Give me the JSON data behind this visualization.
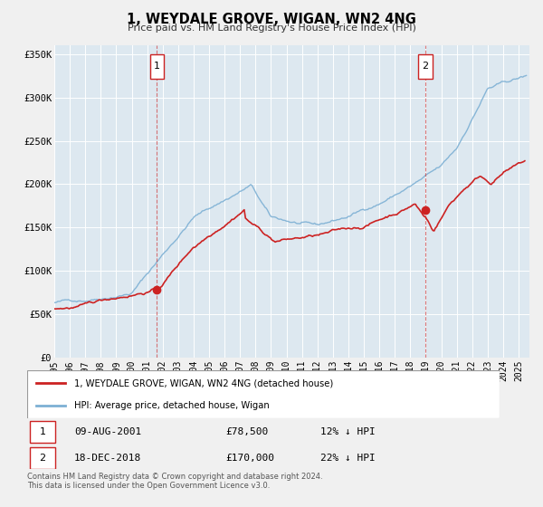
{
  "title": "1, WEYDALE GROVE, WIGAN, WN2 4NG",
  "subtitle": "Price paid vs. HM Land Registry's House Price Index (HPI)",
  "fig_bg_color": "#f0f0f0",
  "plot_bg_color": "#dde8f0",
  "grid_color": "#ffffff",
  "hpi_color": "#7db0d4",
  "price_color": "#cc2222",
  "ylim": [
    0,
    360000
  ],
  "xlim_start": 1995.0,
  "xlim_end": 2025.7,
  "ytick_labels": [
    "£0",
    "£50K",
    "£100K",
    "£150K",
    "£200K",
    "£250K",
    "£300K",
    "£350K"
  ],
  "ytick_values": [
    0,
    50000,
    100000,
    150000,
    200000,
    250000,
    300000,
    350000
  ],
  "xtick_years": [
    1995,
    1996,
    1997,
    1998,
    1999,
    2000,
    2001,
    2002,
    2003,
    2004,
    2005,
    2006,
    2007,
    2008,
    2009,
    2010,
    2011,
    2012,
    2013,
    2014,
    2015,
    2016,
    2017,
    2018,
    2019,
    2020,
    2021,
    2022,
    2023,
    2024,
    2025
  ],
  "sale1_x": 2001.62,
  "sale1_y": 78500,
  "sale2_x": 2018.97,
  "sale2_y": 170000,
  "legend1": "1, WEYDALE GROVE, WIGAN, WN2 4NG (detached house)",
  "legend2": "HPI: Average price, detached house, Wigan",
  "table_row1": [
    "1",
    "09-AUG-2001",
    "£78,500",
    "12% ↓ HPI"
  ],
  "table_row2": [
    "2",
    "18-DEC-2018",
    "£170,000",
    "22% ↓ HPI"
  ],
  "footnote": "Contains HM Land Registry data © Crown copyright and database right 2024.\nThis data is licensed under the Open Government Licence v3.0."
}
